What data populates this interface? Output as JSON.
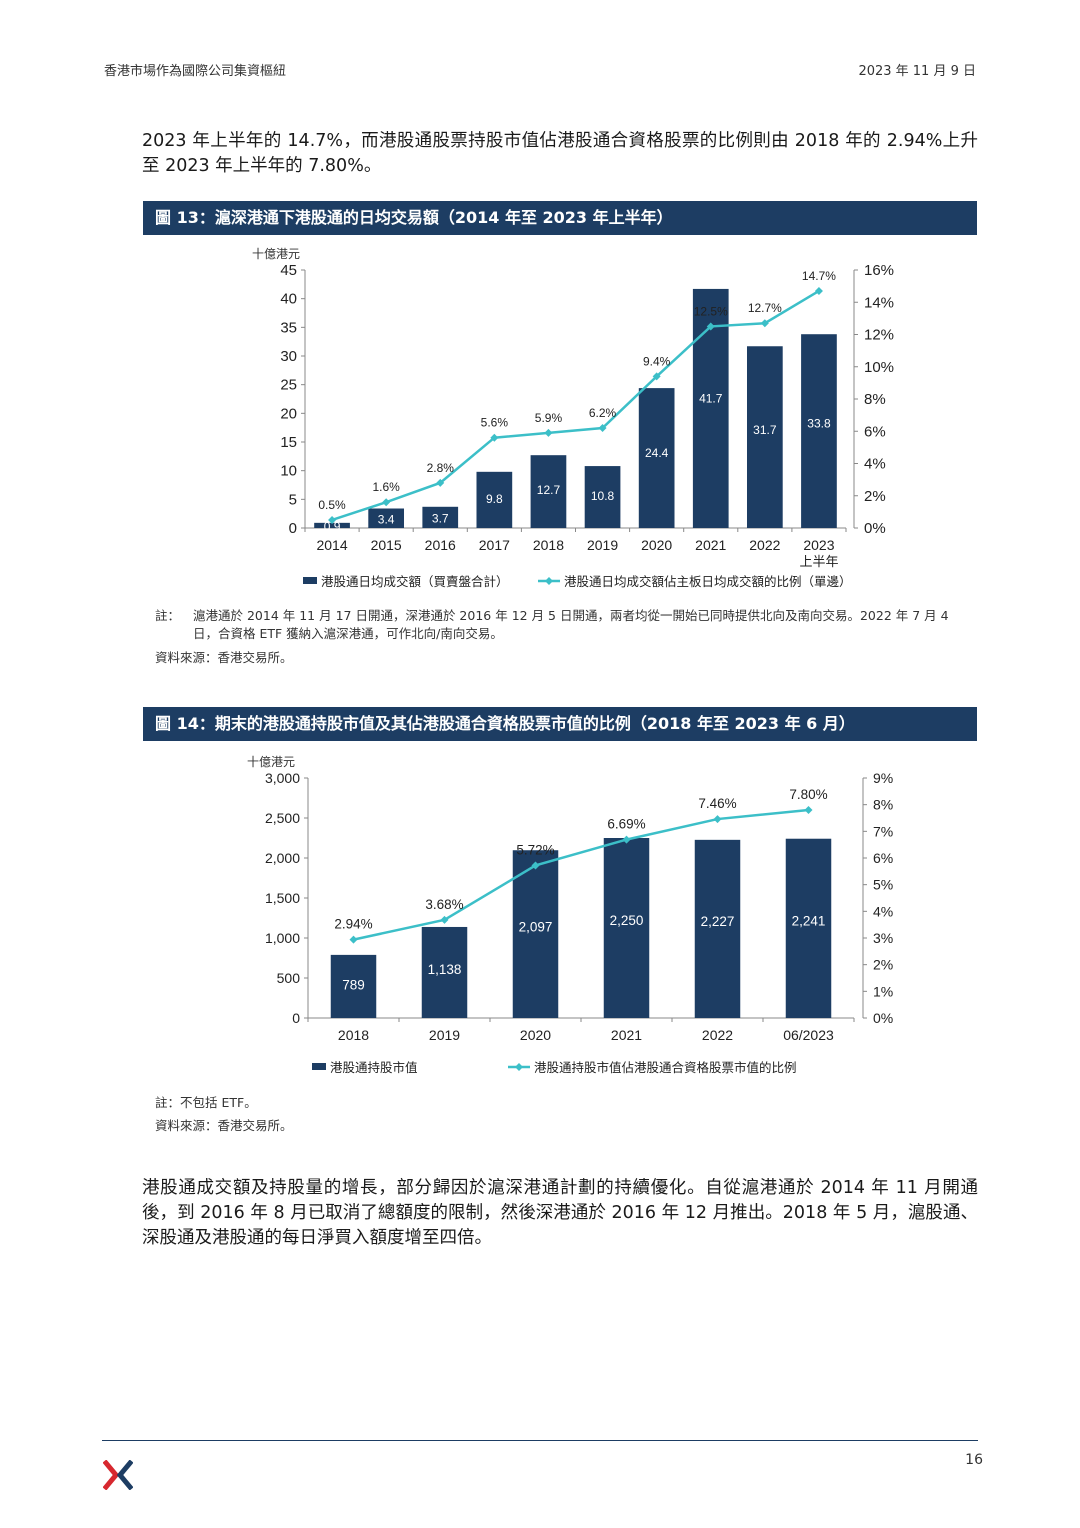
{
  "header": {
    "left": "香港市場作為國際公司集資樞紐",
    "right": "2023 年 11 月 9 日"
  },
  "intro_paragraph": "2023 年上半年的 14.7%，而港股通股票持股市值佔港股通合資格股票的比例則由 2018 年的 2.94%上升至 2023 年上半年的 7.80%。",
  "fig13": {
    "title": "圖 13：滬深港通下港股通的日均交易額（2014 年至 2023 年上半年）",
    "note_label": "註：",
    "note": "滬港通於 2014 年 11 月 17 日開通，深港通於 2016 年 12 月 5 日開通，兩者均從一開始已同時提供北向及南向交易。2022 年 7 月 4 日，合資格 ETF 獲納入滬深港通，可作北向/南向交易。",
    "source": "資料來源：香港交易所。"
  },
  "fig14": {
    "title": "圖 14：期末的港股通持股市值及其佔港股通合資格股票市值的比例（2018 年至 2023 年 6 月）",
    "note": "註：不包括 ETF。",
    "source": "資料來源：香港交易所。"
  },
  "closing_paragraph": "港股通成交額及持股量的增長，部分歸因於滬深港通計劃的持續優化。自從滬港通於 2014 年 11 月開通後，到 2016 年 8 月已取消了總額度的限制，然後深港通於 2016 年 12 月推出。2018 年 5 月，滬股通、深股通及港股通的每日淨買入額度增至四倍。",
  "page_number": "16",
  "colors": {
    "bar": "#1d3d63",
    "line": "#3cbfc8",
    "title_bg": "#1d3d63",
    "logo_red": "#d7282f",
    "logo_navy": "#1d3d63"
  },
  "chart_data": [
    {
      "type": "bar",
      "unit_label": "十億港元",
      "categories": [
        "2014",
        "2015",
        "2016",
        "2017",
        "2018",
        "2019",
        "2020",
        "2021",
        "2022",
        "2023"
      ],
      "category_sublabels": [
        "",
        "",
        "",
        "",
        "",
        "",
        "",
        "",
        "",
        "上半年"
      ],
      "bar_series": {
        "name": "港股通日均成交額（買賣盤合計）",
        "values": [
          0.9,
          3.4,
          3.7,
          9.8,
          12.7,
          10.8,
          24.4,
          41.7,
          31.7,
          33.8
        ],
        "labels": [
          "0.9",
          "3.4",
          "3.7",
          "9.8",
          "12.7",
          "10.8",
          "24.4",
          "41.7",
          "31.7",
          "33.8"
        ]
      },
      "line_series": {
        "name": "港股通日均成交額佔主板日均成交額的比例（單邊）",
        "values": [
          0.5,
          1.6,
          2.8,
          5.6,
          5.9,
          6.2,
          9.4,
          12.5,
          12.7,
          14.7
        ],
        "labels": [
          "0.5%",
          "1.6%",
          "2.8%",
          "5.6%",
          "5.9%",
          "6.2%",
          "9.4%",
          "12.5%",
          "12.7%",
          "14.7%"
        ]
      },
      "y_left": {
        "min": 0,
        "max": 45,
        "ticks": [
          0,
          5,
          10,
          15,
          20,
          25,
          30,
          35,
          40,
          45
        ],
        "tick_labels": [
          "0",
          "5",
          "10",
          "15",
          "20",
          "25",
          "30",
          "35",
          "40",
          "45"
        ]
      },
      "y_right": {
        "min": 0,
        "max": 16,
        "ticks": [
          0,
          2,
          4,
          6,
          8,
          10,
          12,
          14,
          16
        ],
        "tick_labels": [
          "0%",
          "2%",
          "4%",
          "6%",
          "8%",
          "10%",
          "12%",
          "14%",
          "16%"
        ]
      },
      "legend_placement": "bottom"
    },
    {
      "type": "bar",
      "unit_label": "十億港元",
      "categories": [
        "2018",
        "2019",
        "2020",
        "2021",
        "2022",
        "06/2023"
      ],
      "category_sublabels": [
        "",
        "",
        "",
        "",
        "",
        ""
      ],
      "bar_series": {
        "name": "港股通持股市值",
        "values": [
          789,
          1138,
          2097,
          2250,
          2227,
          2241
        ],
        "labels": [
          "789",
          "1,138",
          "2,097",
          "2,250",
          "2,227",
          "2,241"
        ]
      },
      "line_series": {
        "name": "港股通持股市值佔港股通合資格股票市值的比例",
        "values": [
          2.94,
          3.68,
          5.72,
          6.69,
          7.46,
          7.8
        ],
        "labels": [
          "2.94%",
          "3.68%",
          "5.72%",
          "6.69%",
          "7.46%",
          "7.80%"
        ]
      },
      "y_left": {
        "min": 0,
        "max": 3000,
        "ticks": [
          0,
          500,
          1000,
          1500,
          2000,
          2500,
          3000
        ],
        "tick_labels": [
          "0",
          "500",
          "1,000",
          "1,500",
          "2,000",
          "2,500",
          "3,000"
        ]
      },
      "y_right": {
        "min": 0,
        "max": 9,
        "ticks": [
          0,
          1,
          2,
          3,
          4,
          5,
          6,
          7,
          8,
          9
        ],
        "tick_labels": [
          "0%",
          "1%",
          "2%",
          "3%",
          "4%",
          "5%",
          "6%",
          "7%",
          "8%",
          "9%"
        ]
      },
      "legend_placement": "bottom"
    }
  ]
}
